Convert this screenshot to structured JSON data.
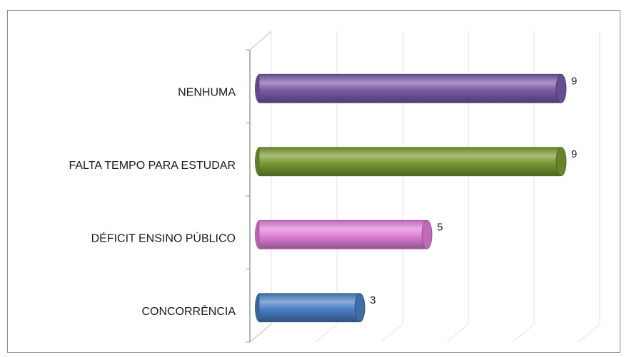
{
  "chart_data": {
    "type": "bar",
    "orientation": "horizontal",
    "style": "3d-cylinder",
    "categories": [
      "NENHUMA",
      "FALTA TEMPO PARA ESTUDAR",
      "DÉFICIT ENSINO PÚBLICO",
      "CONCORRÊNCIA"
    ],
    "values": [
      9,
      9,
      5,
      3
    ],
    "value_labels": [
      "9",
      "9",
      "5",
      "3"
    ],
    "colors": [
      "#7b5aa8",
      "#7a9a33",
      "#e07fd8",
      "#4a80c4"
    ],
    "xlim": [
      0,
      10
    ],
    "grid": true,
    "legend": "none",
    "title": "",
    "xlabel": "",
    "ylabel": ""
  }
}
